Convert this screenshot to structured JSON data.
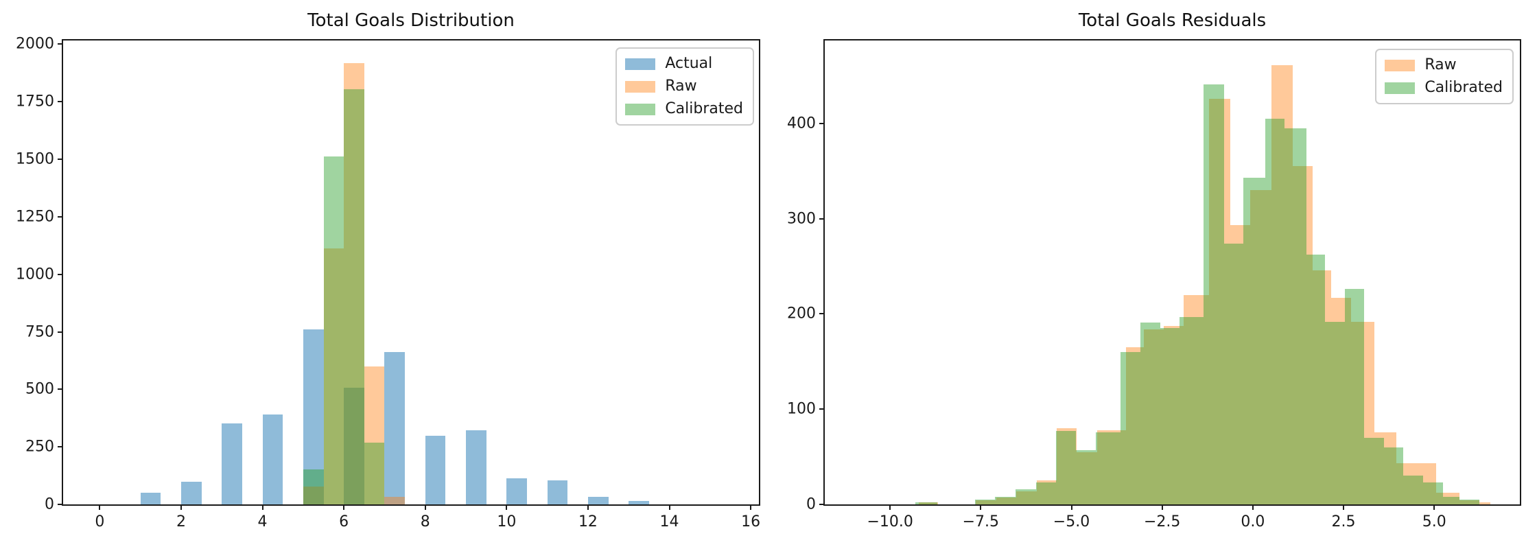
{
  "figure": {
    "background": "#ffffff",
    "text_color": "#1a1a1a"
  },
  "chart_data": [
    {
      "type": "bar",
      "subtype": "overlapping-histograms",
      "title": "Total Goals Distribution",
      "xlabel": "",
      "ylabel": "",
      "xlim": [
        -0.9,
        16.2
      ],
      "ylim": [
        0,
        2016
      ],
      "grid": false,
      "legend_position": "top-right",
      "xticks": {
        "values": [
          0,
          2,
          4,
          6,
          8,
          10,
          12,
          14,
          16
        ],
        "labels": [
          "0",
          "2",
          "4",
          "6",
          "8",
          "10",
          "12",
          "14",
          "16"
        ]
      },
      "yticks": {
        "values": [
          0,
          250,
          500,
          750,
          1000,
          1250,
          1500,
          1750,
          2000
        ],
        "labels": [
          "0",
          "250",
          "500",
          "750",
          "1000",
          "1250",
          "1500",
          "1750",
          "2000"
        ]
      },
      "legend": [
        "Actual",
        "Raw",
        "Calibrated"
      ],
      "series": [
        {
          "name": "Actual",
          "color": "#1f77b4",
          "alpha": 0.5,
          "bars": [
            [
              1.0,
              1.5,
              50
            ],
            [
              2.0,
              2.5,
              97
            ],
            [
              3.0,
              3.5,
              352
            ],
            [
              4.0,
              4.5,
              390
            ],
            [
              5.0,
              5.5,
              760
            ],
            [
              6.0,
              6.5,
              508
            ],
            [
              7.0,
              7.5,
              663
            ],
            [
              8.0,
              8.5,
              297
            ],
            [
              9.0,
              9.5,
              322
            ],
            [
              10.0,
              10.5,
              112
            ],
            [
              11.0,
              11.5,
              105
            ],
            [
              12.0,
              12.5,
              33
            ],
            [
              13.0,
              13.5,
              15
            ]
          ]
        },
        {
          "name": "Raw",
          "color": "#ff7f0e",
          "alpha": 0.42,
          "bars": [
            [
              5.0,
              5.5,
              78
            ],
            [
              5.5,
              6.0,
              1113
            ],
            [
              6.0,
              6.5,
              1918
            ],
            [
              6.5,
              7.0,
              598
            ],
            [
              7.0,
              7.5,
              32
            ]
          ]
        },
        {
          "name": "Calibrated",
          "color": "#2ca02c",
          "alpha": 0.45,
          "bars": [
            [
              5.0,
              5.5,
              152
            ],
            [
              5.5,
              6.0,
              1512
            ],
            [
              6.0,
              6.5,
              1803
            ],
            [
              6.5,
              7.0,
              268
            ]
          ]
        }
      ]
    },
    {
      "type": "bar",
      "subtype": "overlapping-histograms",
      "title": "Total Goals Residuals",
      "xlabel": "",
      "ylabel": "",
      "xlim": [
        -11.8,
        7.36
      ],
      "ylim": [
        0,
        487
      ],
      "grid": false,
      "legend_position": "top-right",
      "xticks": {
        "values": [
          -10.0,
          -7.5,
          -5.0,
          -2.5,
          0.0,
          2.5,
          5.0
        ],
        "labels": [
          "−10.0",
          "−7.5",
          "−5.0",
          "−2.5",
          "0.0",
          "2.5",
          "5.0"
        ]
      },
      "yticks": {
        "values": [
          0,
          100,
          200,
          300,
          400
        ],
        "labels": [
          "0",
          "100",
          "200",
          "300",
          "400"
        ]
      },
      "legend": [
        "Raw",
        "Calibrated"
      ],
      "series": [
        {
          "name": "Raw",
          "color": "#ff7f0e",
          "alpha": 0.42,
          "bars": [
            [
              -9.2,
              -8.67,
              2
            ],
            [
              -7.63,
              -7.08,
              4
            ],
            [
              -7.08,
              -6.53,
              7
            ],
            [
              -6.53,
              -5.95,
              14
            ],
            [
              -5.95,
              -5.4,
              25
            ],
            [
              -5.4,
              -4.85,
              80
            ],
            [
              -4.85,
              -4.3,
              55
            ],
            [
              -4.3,
              -3.5,
              78
            ],
            [
              -3.5,
              -3.0,
              165
            ],
            [
              -3.0,
              -2.45,
              184
            ],
            [
              -2.45,
              -1.9,
              187
            ],
            [
              -1.9,
              -1.2,
              220
            ],
            [
              -1.2,
              -0.63,
              426
            ],
            [
              -0.63,
              -0.08,
              293
            ],
            [
              -0.08,
              0.51,
              330
            ],
            [
              0.51,
              1.1,
              461
            ],
            [
              1.1,
              1.65,
              355
            ],
            [
              1.65,
              2.15,
              246
            ],
            [
              2.15,
              2.7,
              217
            ],
            [
              2.7,
              3.35,
              192
            ],
            [
              3.35,
              3.95,
              76
            ],
            [
              3.95,
              5.05,
              43
            ],
            [
              5.05,
              5.7,
              12
            ],
            [
              5.7,
              6.25,
              4
            ],
            [
              6.25,
              6.55,
              2
            ]
          ]
        },
        {
          "name": "Calibrated",
          "color": "#2ca02c",
          "alpha": 0.45,
          "bars": [
            [
              -9.3,
              -8.7,
              2
            ],
            [
              -7.65,
              -7.1,
              5
            ],
            [
              -7.1,
              -6.55,
              8
            ],
            [
              -6.55,
              -5.97,
              16
            ],
            [
              -5.97,
              -5.42,
              23
            ],
            [
              -5.42,
              -4.87,
              77
            ],
            [
              -4.87,
              -4.32,
              57
            ],
            [
              -4.32,
              -3.65,
              76
            ],
            [
              -3.65,
              -3.1,
              160
            ],
            [
              -3.1,
              -2.56,
              191
            ],
            [
              -2.56,
              -2.02,
              185
            ],
            [
              -2.02,
              -1.36,
              197
            ],
            [
              -1.36,
              -0.8,
              441
            ],
            [
              -0.8,
              -0.26,
              274
            ],
            [
              -0.26,
              0.34,
              343
            ],
            [
              0.34,
              0.88,
              405
            ],
            [
              0.88,
              1.48,
              395
            ],
            [
              1.48,
              1.98,
              262
            ],
            [
              1.98,
              2.53,
              192
            ],
            [
              2.53,
              3.07,
              226
            ],
            [
              3.07,
              3.62,
              70
            ],
            [
              3.62,
              4.15,
              60
            ],
            [
              4.15,
              4.7,
              30
            ],
            [
              4.7,
              5.25,
              23
            ],
            [
              5.25,
              5.7,
              8
            ],
            [
              5.7,
              6.25,
              5
            ]
          ]
        }
      ]
    }
  ]
}
